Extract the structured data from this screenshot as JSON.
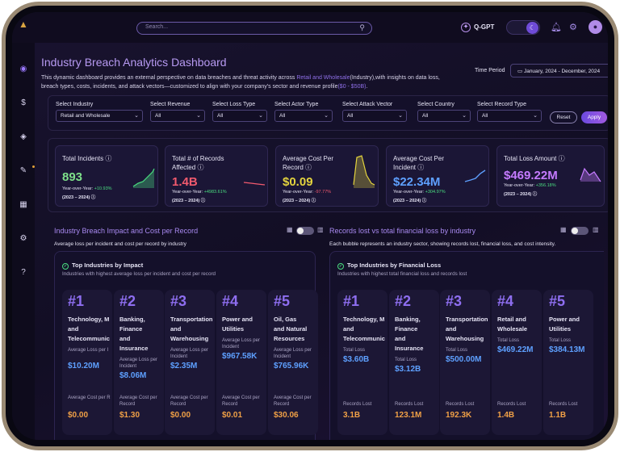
{
  "topbar": {
    "search_placeholder": "Search...",
    "assistant_label": "Q-GPT"
  },
  "header": {
    "title": "Industry Breach Analytics Dashboard",
    "desc_part1": "This dynamic dashboard provides an external perspective on data breaches and threat activity across ",
    "desc_industry": "Retail and Wholesale",
    "desc_part2": "(Industry),with insights on data loss, breach types, costs, incidents, and attack vectors—customized to align with your company's sector and revenue profile",
    "desc_range": "($0 - $50B)",
    "desc_end": ".",
    "time_period_label": "Time Period",
    "time_period_value": "January, 2024 - December, 2024"
  },
  "filters": [
    {
      "label": "Select Industry",
      "value": "Retail and Wholesale"
    },
    {
      "label": "Select Revenue",
      "value": "All"
    },
    {
      "label": "Select Loss Type",
      "value": "All"
    },
    {
      "label": "Select Actor Type",
      "value": "All"
    },
    {
      "label": "Select Attack Vector",
      "value": "All"
    },
    {
      "label": "Select Country",
      "value": "All"
    },
    {
      "label": "Select Record Type",
      "value": "All"
    }
  ],
  "buttons": {
    "reset": "Reset",
    "apply": "Apply"
  },
  "kpis": [
    {
      "title": "Total Incidents",
      "value": "893",
      "yoy_label": "Year-over-Year:",
      "yoy_change": "+10.93%",
      "period": "(2023 – 2024)",
      "color": "#7ee08a",
      "change_color": "#4ade80"
    },
    {
      "title": "Total # of Records Affected",
      "value": "1.4B",
      "yoy_label": "Year-over-Year:",
      "yoy_change": "+4983.61%",
      "period": "(2023 – 2024)",
      "color": "#f25a6e",
      "change_color": "#4ade80"
    },
    {
      "title": "Average Cost Per Record",
      "value": "$0.09",
      "yoy_label": "Year-over-Year:",
      "yoy_change": "-97.77%",
      "period": "(2023 – 2024)",
      "color": "#e3d33e",
      "change_color": "#f25a6e"
    },
    {
      "title": "Average Cost Per Incident",
      "value": "$22.34M",
      "yoy_label": "Year-over-Year:",
      "yoy_change": "+304.97%",
      "period": "(2023 – 2024)",
      "color": "#5ea0ff",
      "change_color": "#4ade80"
    },
    {
      "title": "Total Loss Amount",
      "value": "$469.22M",
      "yoy_label": "Year-over-Year:",
      "yoy_change": "+356.18%",
      "period": "(2023 – 2024)",
      "color": "#c57bff",
      "change_color": "#4ade80"
    }
  ],
  "panel_left": {
    "title": "Industry Breach Impact and Cost per Record",
    "subtitle": "Average loss per incident and cost per record by industry",
    "card_title": "Top Industries by Impact",
    "card_subtitle": "Industries with highest average loss per incident and cost per record",
    "items": [
      {
        "rank": "#1",
        "name_lines": [
          "Technology, M",
          "and",
          "Telecommunic"
        ],
        "label1": "Average Loss per I",
        "value1": "$10.20M",
        "label2": "Average Cost per R",
        "value2": "$0.00"
      },
      {
        "rank": "#2",
        "name_lines": [
          "Banking,",
          "Finance",
          "and",
          "Insurance"
        ],
        "label1": "Average Loss per Incident",
        "value1": "$8.06M",
        "label2": "Average Cost per Record",
        "value2": "$1.30"
      },
      {
        "rank": "#3",
        "name_lines": [
          "Transportation",
          "and",
          "Warehousing"
        ],
        "label1": "Average Loss per Incident",
        "value1": "$2.35M",
        "label2": "Average Cost per Record",
        "value2": "$0.00"
      },
      {
        "rank": "#4",
        "name_lines": [
          "Power and",
          "Utilities"
        ],
        "label1": "Average Loss per Incident",
        "value1": "$967.58K",
        "label2": "Average Cost per Record",
        "value2": "$0.01"
      },
      {
        "rank": "#5",
        "name_lines": [
          "Oil, Gas",
          "and Natural",
          "Resources"
        ],
        "label1": "Average Loss per Incident",
        "value1": "$765.96K",
        "label2": "Average Cost per Record",
        "value2": "$30.06"
      }
    ]
  },
  "panel_right": {
    "title": "Records lost vs total financial loss by industry",
    "subtitle": "Each bubble represents an industry sector, showing records lost, financial loss, and cost intensity.",
    "card_title": "Top Industries by Financial Loss",
    "card_subtitle": "Industries with highest total financial loss and records lost",
    "items": [
      {
        "rank": "#1",
        "name_lines": [
          "Technology, M",
          "and",
          "Telecommunic"
        ],
        "label1": "Total Loss",
        "value1": "$3.60B",
        "label2": "Records Lost",
        "value2": "3.1B"
      },
      {
        "rank": "#2",
        "name_lines": [
          "Banking,",
          "Finance",
          "and",
          "Insurance"
        ],
        "label1": "Total Loss",
        "value1": "$3.12B",
        "label2": "Records Lost",
        "value2": "123.1M"
      },
      {
        "rank": "#3",
        "name_lines": [
          "Transportation",
          "and",
          "Warehousing"
        ],
        "label1": "Total Loss",
        "value1": "$500.00M",
        "label2": "Records Lost",
        "value2": "192.3K"
      },
      {
        "rank": "#4",
        "name_lines": [
          "Retail and",
          "Wholesale"
        ],
        "label1": "Total Loss",
        "value1": "$469.22M",
        "label2": "Records Lost",
        "value2": "1.4B"
      },
      {
        "rank": "#5",
        "name_lines": [
          "Power and",
          "Utilities"
        ],
        "label1": "Total Loss",
        "value1": "$384.13M",
        "label2": "Records Lost",
        "value2": "1.1B"
      }
    ]
  },
  "colors": {
    "value1": "#5ea0ff",
    "value2": "#f0a046",
    "rank": "#8e6ef0"
  }
}
